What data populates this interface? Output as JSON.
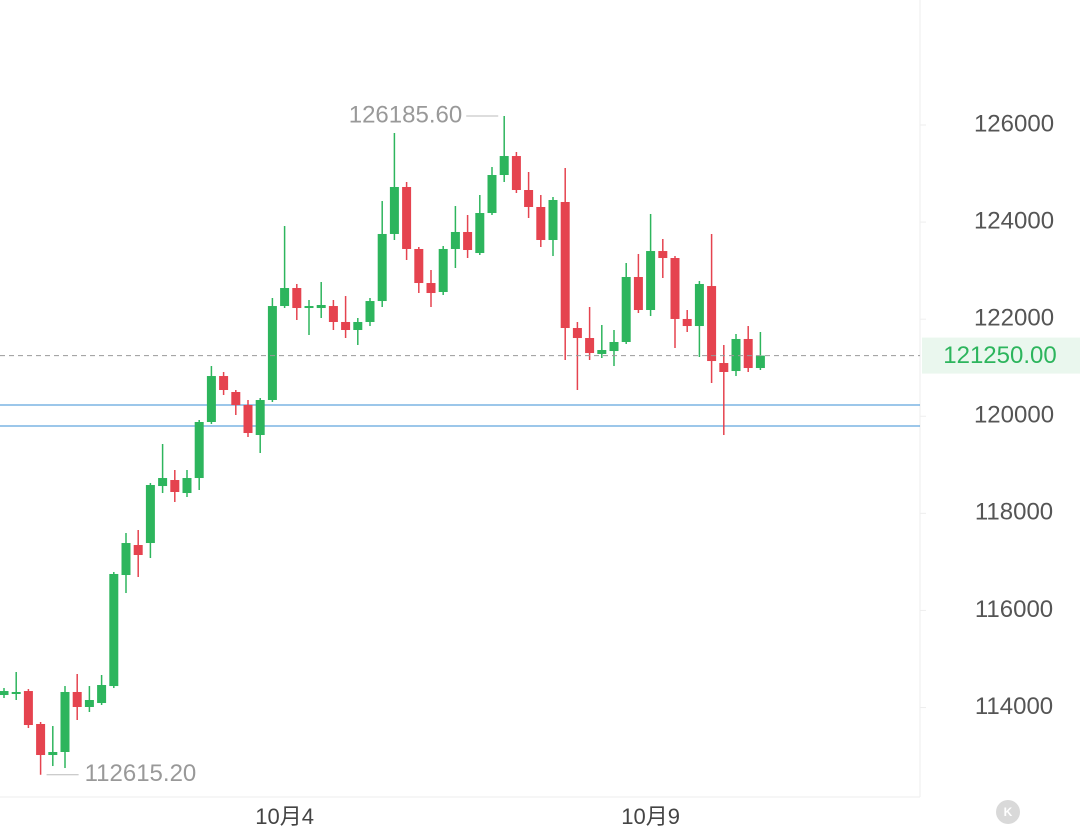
{
  "chart_data": {
    "type": "candlestick",
    "categories": [
      null,
      null,
      null,
      null,
      null,
      null,
      null,
      null,
      null,
      null,
      null,
      null,
      null,
      null,
      null,
      null,
      null,
      null,
      null,
      null,
      null,
      null,
      null,
      "10月4",
      null,
      null,
      null,
      null,
      null,
      null,
      null,
      null,
      null,
      null,
      null,
      null,
      null,
      null,
      null,
      null,
      null,
      null,
      null,
      null,
      null,
      null,
      null,
      null,
      null,
      null,
      null,
      null,
      null,
      "10月9",
      null,
      null,
      null,
      null,
      null,
      null,
      null,
      null,
      null
    ],
    "open": [
      114258,
      114279,
      114340,
      113661,
      113022,
      113084,
      114320,
      114011,
      114093,
      114443,
      116730,
      117348,
      117389,
      118563,
      118687,
      118419,
      118728,
      119882,
      120829,
      120500,
      120232,
      119614,
      120335,
      122271,
      122642,
      122230,
      122230,
      122271,
      121942,
      121777,
      121942,
      122374,
      123755,
      124723,
      123446,
      122745,
      122560,
      123446,
      123796,
      123363,
      124187,
      124970,
      125361,
      124661,
      124311,
      123631,
      124414,
      121818,
      121612,
      121283,
      121344,
      121530,
      122869,
      122189,
      123404,
      123260,
      122004,
      121859,
      122683,
      121097,
      120932,
      121592,
      120994
    ],
    "high": [
      114402,
      114732,
      114381,
      113702,
      113619,
      114443,
      114691,
      114443,
      114670,
      116792,
      117595,
      117657,
      118625,
      119429,
      118893,
      118893,
      119923,
      121035,
      120912,
      120541,
      120335,
      120376,
      122436,
      123919,
      122725,
      122395,
      122766,
      122395,
      122477,
      122024,
      122436,
      124434,
      125835,
      124826,
      123487,
      123013,
      123507,
      124331,
      124146,
      124558,
      125135,
      126185.6,
      125444,
      125032,
      124558,
      124517,
      125114,
      121942,
      122251,
      121880,
      121777,
      123157,
      123343,
      124167,
      123652,
      123301,
      122189,
      122786,
      123755,
      121468,
      121695,
      121859,
      121736
    ],
    "low": [
      114196,
      114155,
      113578,
      112615.2,
      112795,
      112754,
      113743,
      113908,
      114052,
      114402,
      116359,
      116689,
      117080,
      118419,
      118234,
      118337,
      118481,
      119841,
      120438,
      120026,
      119573,
      119243,
      120294,
      122230,
      121983,
      121674,
      122024,
      121777,
      121612,
      121468,
      121859,
      122251,
      123631,
      123219,
      122539,
      122251,
      122498,
      123054,
      123260,
      123322,
      124146,
      124826,
      124599,
      124084,
      123487,
      123301,
      121159,
      120541,
      121159,
      121200,
      121035,
      121489,
      122127,
      122065,
      122848,
      121406,
      121736,
      121221,
      120685,
      119614,
      120829,
      120912,
      120953
    ],
    "close": [
      114340,
      114320,
      113640,
      113022,
      113084,
      114320,
      114011,
      114155,
      114464,
      116751,
      117389,
      117142,
      118584,
      118728,
      118440,
      118728,
      119882,
      120829,
      120541,
      120232,
      119655,
      120335,
      122271,
      122642,
      122230,
      122271,
      122292,
      121942,
      121777,
      121942,
      122374,
      123755,
      124723,
      123446,
      122745,
      122539,
      123446,
      123796,
      123425,
      124187,
      124970,
      125361,
      124661,
      124311,
      123631,
      124455,
      121818,
      121612,
      121303,
      121365,
      121530,
      122869,
      122189,
      123404,
      123260,
      122004,
      121859,
      122725,
      121138,
      120912,
      121592,
      120994,
      121250
    ],
    "up_color": "#2db55d",
    "down_color": "#e5434f",
    "ylim": [
      112157,
      128575
    ],
    "yticks": [
      114000,
      116000,
      118000,
      120000,
      122000,
      124000,
      126000
    ],
    "last_price": {
      "value": 121250,
      "label": "121250.00"
    },
    "annotations": [
      {
        "value": 126185.6,
        "label": "126185.60"
      },
      {
        "value": 112615.2,
        "label": "112615.20"
      }
    ],
    "levels": [
      120232,
      119800
    ]
  }
}
